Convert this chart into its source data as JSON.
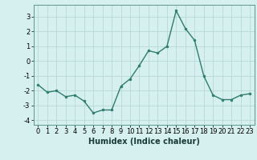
{
  "x": [
    0,
    1,
    2,
    3,
    4,
    5,
    6,
    7,
    8,
    9,
    10,
    11,
    12,
    13,
    14,
    15,
    16,
    17,
    18,
    19,
    20,
    21,
    22,
    23
  ],
  "y": [
    -1.6,
    -2.1,
    -2.0,
    -2.4,
    -2.3,
    -2.7,
    -3.5,
    -3.3,
    -3.3,
    -1.7,
    -1.2,
    -0.3,
    0.7,
    0.55,
    1.0,
    3.4,
    2.2,
    1.4,
    -1.0,
    -2.3,
    -2.6,
    -2.6,
    -2.3,
    -2.2
  ],
  "line_color": "#2e7d6e",
  "marker": "o",
  "marker_size": 2.0,
  "linewidth": 1.0,
  "bg_color": "#d6efef",
  "grid_color": "#b8d8d8",
  "xlabel": "Humidex (Indice chaleur)",
  "xlabel_fontsize": 7,
  "tick_fontsize": 6,
  "yticks": [
    -4,
    -3,
    -2,
    -1,
    0,
    1,
    2,
    3
  ],
  "xticks": [
    0,
    1,
    2,
    3,
    4,
    5,
    6,
    7,
    8,
    9,
    10,
    11,
    12,
    13,
    14,
    15,
    16,
    17,
    18,
    19,
    20,
    21,
    22,
    23
  ],
  "ylim": [
    -4.3,
    3.8
  ],
  "xlim": [
    -0.5,
    23.5
  ]
}
